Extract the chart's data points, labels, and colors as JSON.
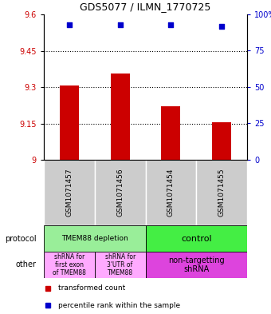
{
  "title": "GDS5077 / ILMN_1770725",
  "samples": [
    "GSM1071457",
    "GSM1071456",
    "GSM1071454",
    "GSM1071455"
  ],
  "bar_values": [
    9.305,
    9.355,
    9.22,
    9.155
  ],
  "bar_bottom": 9.0,
  "percentile_values": [
    93,
    93,
    93,
    92
  ],
  "ylim_left": [
    9.0,
    9.6
  ],
  "ylim_right": [
    0,
    100
  ],
  "yticks_left": [
    9.0,
    9.15,
    9.3,
    9.45,
    9.6
  ],
  "ytick_labels_left": [
    "9",
    "9.15",
    "9.3",
    "9.45",
    "9.6"
  ],
  "yticks_right": [
    0,
    25,
    50,
    75,
    100
  ],
  "ytick_labels_right": [
    "0",
    "25",
    "50",
    "75",
    "100%"
  ],
  "hlines": [
    9.15,
    9.3,
    9.45
  ],
  "bar_color": "#cc0000",
  "dot_color": "#0000cc",
  "protocol_label0": "TMEM88 depletion",
  "protocol_label1": "control",
  "protocol_color0": "#99ee99",
  "protocol_color1": "#44ee44",
  "other_label0": "shRNA for\nfirst exon\nof TMEM88",
  "other_label1": "shRNA for\n3'UTR of\nTMEM88",
  "other_label2": "non-targetting\nshRNA",
  "other_color01": "#ffaaff",
  "other_color2": "#dd44dd",
  "legend_bar_label": "transformed count",
  "legend_dot_label": "percentile rank within the sample",
  "left_color": "#cc0000",
  "right_color": "#0000cc",
  "gray_bg": "#cccccc",
  "figsize": [
    3.4,
    3.93
  ],
  "dpi": 100
}
